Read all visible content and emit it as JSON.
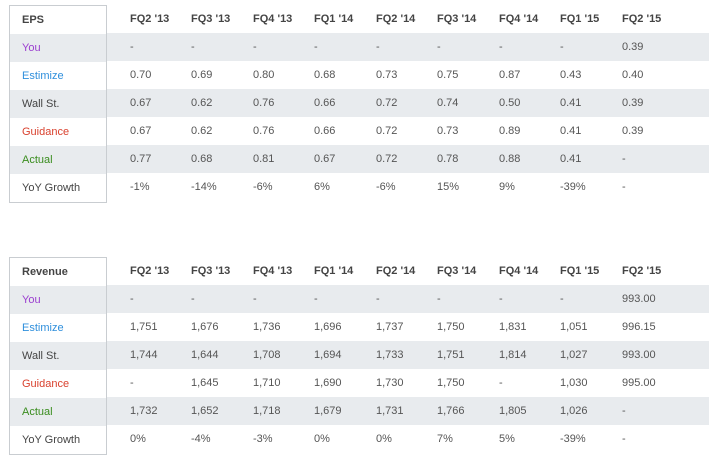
{
  "colors": {
    "you": "#9b3fd0",
    "estimize": "#2f8fdc",
    "wall_st": "#444444",
    "guidance": "#d9412e",
    "actual": "#3a8d1f",
    "row_shade": "#e8ebee"
  },
  "eps": {
    "title": "EPS",
    "quarters": [
      "FQ2 '13",
      "FQ3 '13",
      "FQ4 '13",
      "FQ1 '14",
      "FQ2 '14",
      "FQ3 '14",
      "FQ4 '14",
      "FQ1 '15",
      "FQ2 '15"
    ],
    "rows": [
      {
        "label": "You",
        "values": [
          "-",
          "-",
          "-",
          "-",
          "-",
          "-",
          "-",
          "-",
          "0.39"
        ]
      },
      {
        "label": "Estimize",
        "values": [
          "0.70",
          "0.69",
          "0.80",
          "0.68",
          "0.73",
          "0.75",
          "0.87",
          "0.43",
          "0.40"
        ]
      },
      {
        "label": "Wall St.",
        "values": [
          "0.67",
          "0.62",
          "0.76",
          "0.66",
          "0.72",
          "0.74",
          "0.50",
          "0.41",
          "0.39"
        ]
      },
      {
        "label": "Guidance",
        "values": [
          "0.67",
          "0.62",
          "0.76",
          "0.66",
          "0.72",
          "0.73",
          "0.89",
          "0.41",
          "0.39"
        ]
      },
      {
        "label": "Actual",
        "values": [
          "0.77",
          "0.68",
          "0.81",
          "0.67",
          "0.72",
          "0.78",
          "0.88",
          "0.41",
          "-"
        ]
      },
      {
        "label": "YoY Growth",
        "values": [
          "-1%",
          "-14%",
          "-6%",
          "6%",
          "-6%",
          "15%",
          "9%",
          "-39%",
          "-"
        ]
      }
    ]
  },
  "revenue": {
    "title": "Revenue",
    "quarters": [
      "FQ2 '13",
      "FQ3 '13",
      "FQ4 '13",
      "FQ1 '14",
      "FQ2 '14",
      "FQ3 '14",
      "FQ4 '14",
      "FQ1 '15",
      "FQ2 '15"
    ],
    "rows": [
      {
        "label": "You",
        "values": [
          "-",
          "-",
          "-",
          "-",
          "-",
          "-",
          "-",
          "-",
          "993.00"
        ]
      },
      {
        "label": "Estimize",
        "values": [
          "1,751",
          "1,676",
          "1,736",
          "1,696",
          "1,737",
          "1,750",
          "1,831",
          "1,051",
          "996.15"
        ]
      },
      {
        "label": "Wall St.",
        "values": [
          "1,744",
          "1,644",
          "1,708",
          "1,694",
          "1,733",
          "1,751",
          "1,814",
          "1,027",
          "993.00"
        ]
      },
      {
        "label": "Guidance",
        "values": [
          "-",
          "1,645",
          "1,710",
          "1,690",
          "1,730",
          "1,750",
          "-",
          "1,030",
          "995.00"
        ]
      },
      {
        "label": "Actual",
        "values": [
          "1,732",
          "1,652",
          "1,718",
          "1,679",
          "1,731",
          "1,766",
          "1,805",
          "1,026",
          "-"
        ]
      },
      {
        "label": "YoY Growth",
        "values": [
          "0%",
          "-4%",
          "-3%",
          "0%",
          "0%",
          "7%",
          "5%",
          "-39%",
          "-"
        ]
      }
    ]
  }
}
